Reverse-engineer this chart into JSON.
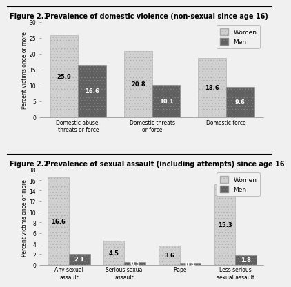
{
  "fig1": {
    "title_prefix": "Figure 2.1",
    "title": "Prevalence of domestic violence (non-sexual since age 16)",
    "categories": [
      "Domestic abuse,\nthreats or force",
      "Domestic threats\nor force",
      "Domestic force"
    ],
    "women": [
      25.9,
      20.8,
      18.6
    ],
    "men": [
      16.6,
      10.1,
      9.6
    ],
    "ylim": [
      0,
      30
    ],
    "yticks": [
      0,
      5,
      10,
      15,
      20,
      25,
      30
    ],
    "ylabel": "Percent victims once or more"
  },
  "fig2": {
    "title_prefix": "Figure 2.2",
    "title": "Prevalence of sexual assault (including attempts) since age 16",
    "categories": [
      "Any sexual\nassault",
      "Serious sexual\nassault",
      "Rape",
      "Less serious\nsexual assault"
    ],
    "women": [
      16.6,
      4.5,
      3.6,
      15.3
    ],
    "men": [
      2.1,
      0.5,
      0.4,
      1.8
    ],
    "ylim": [
      0,
      18
    ],
    "yticks": [
      0,
      2,
      4,
      6,
      8,
      10,
      12,
      14,
      16,
      18
    ],
    "ylabel": "Percent victims once or more"
  },
  "women_color": "#d0d0d0",
  "men_color": "#606060",
  "bg_color": "#f0f0f0",
  "plot_bg": "#f0f0f0",
  "bar_width": 0.38,
  "label_fontsize": 6.0,
  "title_fontsize": 7.0,
  "prefix_fontsize": 7.0,
  "axis_fontsize": 5.5,
  "tick_fontsize": 5.5,
  "legend_fontsize": 6.5
}
